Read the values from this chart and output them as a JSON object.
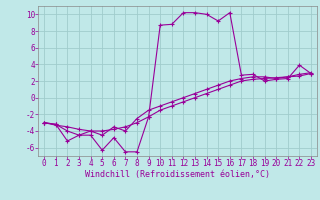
{
  "xlabel": "Windchill (Refroidissement éolien,°C)",
  "background_color": "#c0e8e8",
  "grid_color": "#a0cccc",
  "line_color": "#990099",
  "spine_color": "#888888",
  "xlim": [
    -0.5,
    23.5
  ],
  "ylim": [
    -7,
    11
  ],
  "xticks": [
    0,
    1,
    2,
    3,
    4,
    5,
    6,
    7,
    8,
    9,
    10,
    11,
    12,
    13,
    14,
    15,
    16,
    17,
    18,
    19,
    20,
    21,
    22,
    23
  ],
  "yticks": [
    -6,
    -4,
    -2,
    0,
    2,
    4,
    6,
    8,
    10
  ],
  "series1_x": [
    0,
    1,
    2,
    3,
    4,
    5,
    6,
    7,
    8,
    9,
    10,
    11,
    12,
    13,
    14,
    15,
    16,
    17,
    18,
    19,
    20,
    21,
    22,
    23
  ],
  "series1_y": [
    -3.0,
    -3.2,
    -5.2,
    -4.5,
    -4.5,
    -6.3,
    -4.8,
    -6.5,
    -6.5,
    -2.3,
    8.7,
    8.8,
    10.2,
    10.2,
    10.0,
    9.2,
    10.2,
    2.7,
    2.8,
    2.0,
    2.2,
    2.3,
    3.9,
    2.9
  ],
  "series2_x": [
    0,
    1,
    2,
    3,
    4,
    5,
    6,
    7,
    8,
    9,
    10,
    11,
    12,
    13,
    14,
    15,
    16,
    17,
    18,
    19,
    20,
    21,
    22,
    23
  ],
  "series2_y": [
    -3.0,
    -3.2,
    -4.0,
    -4.5,
    -4.0,
    -4.5,
    -3.5,
    -4.0,
    -2.5,
    -1.5,
    -1.0,
    -0.5,
    0.0,
    0.5,
    1.0,
    1.5,
    2.0,
    2.3,
    2.5,
    2.5,
    2.3,
    2.5,
    2.8,
    3.0
  ],
  "series3_x": [
    0,
    1,
    2,
    3,
    4,
    5,
    6,
    7,
    8,
    9,
    10,
    11,
    12,
    13,
    14,
    15,
    16,
    17,
    18,
    19,
    20,
    21,
    22,
    23
  ],
  "series3_y": [
    -3.0,
    -3.3,
    -3.5,
    -3.8,
    -4.0,
    -4.0,
    -3.8,
    -3.5,
    -3.0,
    -2.3,
    -1.5,
    -1.0,
    -0.5,
    0.0,
    0.5,
    1.0,
    1.5,
    2.0,
    2.2,
    2.3,
    2.4,
    2.5,
    2.6,
    2.9
  ],
  "tick_fontsize": 5.5,
  "xlabel_fontsize": 6.0,
  "linewidth": 0.8,
  "markersize": 2.2
}
